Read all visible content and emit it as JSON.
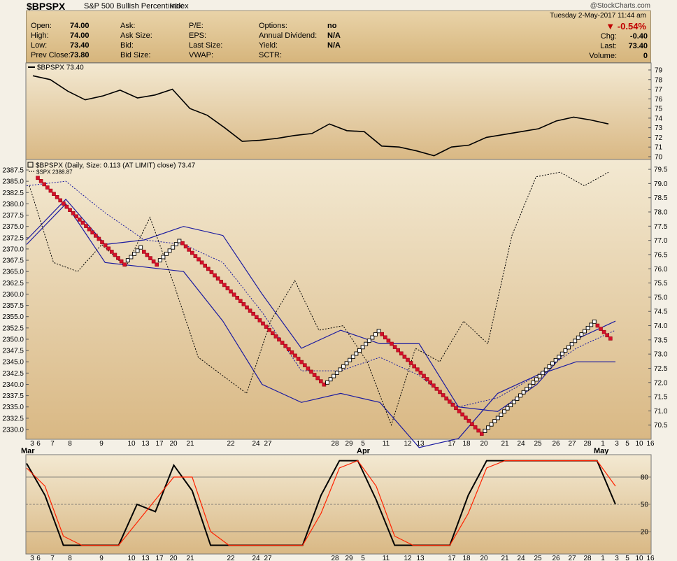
{
  "header": {
    "symbol": "$BPSPX",
    "name": "S&P 500 Bullish Percent Index",
    "exchange": "INDX",
    "watermark": "@StockCharts.com",
    "datetime": "Tuesday  2-May-2017  11:44 am",
    "change_pct": "-0.54%",
    "change_arrow": "▼"
  },
  "quote": {
    "col1": [
      {
        "label": "Open:",
        "value": "74.00"
      },
      {
        "label": "High:",
        "value": "74.00"
      },
      {
        "label": "Low:",
        "value": "73.40"
      },
      {
        "label": "Prev Close:",
        "value": "73.80"
      }
    ],
    "col2": [
      {
        "label": "Ask:",
        "value": ""
      },
      {
        "label": "Ask Size:",
        "value": ""
      },
      {
        "label": "Bid:",
        "value": ""
      },
      {
        "label": "Bid Size:",
        "value": ""
      }
    ],
    "col3": [
      {
        "label": "P/E:",
        "value": ""
      },
      {
        "label": "EPS:",
        "value": ""
      },
      {
        "label": "Last Size:",
        "value": ""
      },
      {
        "label": "VWAP:",
        "value": ""
      }
    ],
    "col4": [
      {
        "label": "Options:",
        "value": "no"
      },
      {
        "label": "Annual Dividend:",
        "value": "N/A"
      },
      {
        "label": "Yield:",
        "value": "N/A"
      },
      {
        "label": "SCTR:",
        "value": ""
      }
    ],
    "right": [
      {
        "label": "Chg:",
        "value": "-0.40"
      },
      {
        "label": "Last:",
        "value": "73.40"
      },
      {
        "label": "Volume:",
        "value": "0"
      }
    ]
  },
  "chart_data": [
    {
      "type": "line",
      "legend": "$BPSPX 73.40",
      "x": [
        "Mar 3",
        "Mar 6",
        "Mar 8",
        "Mar 9",
        "Mar 10",
        "Mar 13",
        "Mar 14",
        "Mar 15",
        "Mar 16",
        "Mar 17",
        "Mar 20",
        "Mar 22",
        "Mar 24",
        "Mar 27",
        "Mar 28",
        "Mar 29",
        "Mar 30",
        "Mar 31",
        "Apr 3",
        "Apr 5",
        "Apr 11",
        "Apr 12",
        "Apr 13",
        "Apr 17",
        "Apr 18",
        "Apr 20",
        "Apr 21",
        "Apr 24",
        "Apr 25",
        "Apr 26",
        "Apr 27",
        "Apr 28",
        "May 1",
        "May 2"
      ],
      "values": [
        78.4,
        78.0,
        76.8,
        75.9,
        76.3,
        76.9,
        76.1,
        76.4,
        77.0,
        75.0,
        74.3,
        73.0,
        71.6,
        71.7,
        71.9,
        72.2,
        72.4,
        73.4,
        72.7,
        72.6,
        71.1,
        71.0,
        70.6,
        70.1,
        71.0,
        71.2,
        72.0,
        72.3,
        72.6,
        72.9,
        73.7,
        74.1,
        73.8,
        73.4
      ],
      "ylim": [
        70,
        79
      ],
      "yticks": [
        70,
        71,
        72,
        73,
        74,
        75,
        76,
        77,
        78,
        79
      ]
    },
    {
      "type": "point-and-figure",
      "title": "$BPSPX (Daily, Size: 0.113 (AT LIMIT) close) 73.47",
      "overlay_label": "$SPX 2388.87",
      "y_left_ticks": [
        "2387.5",
        "2385.0",
        "2382.5",
        "2380.0",
        "2377.5",
        "2375.0",
        "2372.5",
        "2370.0",
        "2367.5",
        "2365.0",
        "2362.5",
        "2360.0",
        "2357.5",
        "2355.0",
        "2352.5",
        "2350.0",
        "2347.5",
        "2345.0",
        "2342.5",
        "2340.0",
        "2337.5",
        "2335.0",
        "2332.5",
        "2330.0"
      ],
      "y_right_ticks": [
        "79.5",
        "79.0",
        "78.5",
        "78.0",
        "77.5",
        "77.0",
        "76.5",
        "76.0",
        "75.5",
        "75.0",
        "74.5",
        "74.0",
        "73.5",
        "73.0",
        "72.5",
        "72.0",
        "71.5",
        "71.0",
        "70.5"
      ],
      "ylim_right": [
        70.1,
        79.6
      ],
      "x_ticks": [
        "3",
        "6",
        "7",
        "8",
        "9",
        "10",
        "13",
        "17",
        "20",
        "21",
        "22",
        "24",
        "27",
        "28",
        "29",
        "5",
        "11",
        "12",
        "13",
        "17",
        "18",
        "20",
        "21",
        "24",
        "25",
        "26",
        "27",
        "28",
        "1",
        "3",
        "5",
        "10",
        "16"
      ],
      "month_labels": [
        "Mar",
        "Apr",
        "May"
      ],
      "columns": [
        {
          "type": "O",
          "low": 76.2,
          "high": 79.2
        },
        {
          "type": "X",
          "low": 76.3,
          "high": 76.7
        },
        {
          "type": "O",
          "low": 76.2,
          "high": 76.6
        },
        {
          "type": "X",
          "low": 76.3,
          "high": 77.0
        },
        {
          "type": "O",
          "low": 71.9,
          "high": 76.9
        },
        {
          "type": "X",
          "low": 72.0,
          "high": 73.8
        },
        {
          "type": "O",
          "low": 70.2,
          "high": 73.7
        },
        {
          "type": "X",
          "low": 70.3,
          "high": 74.1
        },
        {
          "type": "O",
          "low": 73.5,
          "high": 74.0
        }
      ],
      "spx_close": [
        2384,
        2367,
        2365,
        2371,
        2366,
        2377,
        2362,
        2346,
        2342,
        2338,
        2354,
        2363,
        2352,
        2353,
        2345,
        2331,
        2348,
        2345,
        2354,
        2349,
        2373,
        2386,
        2387,
        2384,
        2387
      ],
      "bollinger_upper": [
        2372,
        2381,
        2371,
        2372,
        2375,
        2373,
        2360,
        2348,
        2352,
        2349,
        2349,
        2335,
        2334,
        2340,
        2350,
        2354
      ],
      "bollinger_mid": [
        2384,
        2385,
        2378,
        2372,
        2371,
        2367,
        2356,
        2343,
        2343,
        2346,
        2342,
        2335,
        2337,
        2342,
        2348,
        2352
      ],
      "bollinger_lower": [
        2371,
        2380,
        2367,
        2366,
        2365,
        2354,
        2340,
        2336,
        2338,
        2336,
        2326,
        2328,
        2338,
        2342,
        2345,
        2345
      ]
    },
    {
      "type": "line",
      "title": "Stochastic oscillator",
      "ylim": [
        0,
        100
      ],
      "yticks": [
        20,
        50,
        80
      ],
      "series": [
        {
          "color": "#000000",
          "values": [
            95,
            60,
            5,
            5,
            5,
            5,
            50,
            42,
            93,
            65,
            5,
            5,
            5,
            5,
            5,
            5,
            60,
            98,
            98,
            55,
            5,
            5,
            5,
            5,
            60,
            98,
            98,
            98,
            98,
            98,
            98,
            98,
            50
          ]
        },
        {
          "color": "#ff2200",
          "values": [
            90,
            70,
            15,
            5,
            5,
            5,
            30,
            55,
            80,
            80,
            20,
            5,
            5,
            5,
            5,
            5,
            40,
            90,
            98,
            70,
            15,
            5,
            5,
            5,
            40,
            90,
            98,
            98,
            98,
            98,
            98,
            98,
            70
          ]
        }
      ]
    }
  ]
}
